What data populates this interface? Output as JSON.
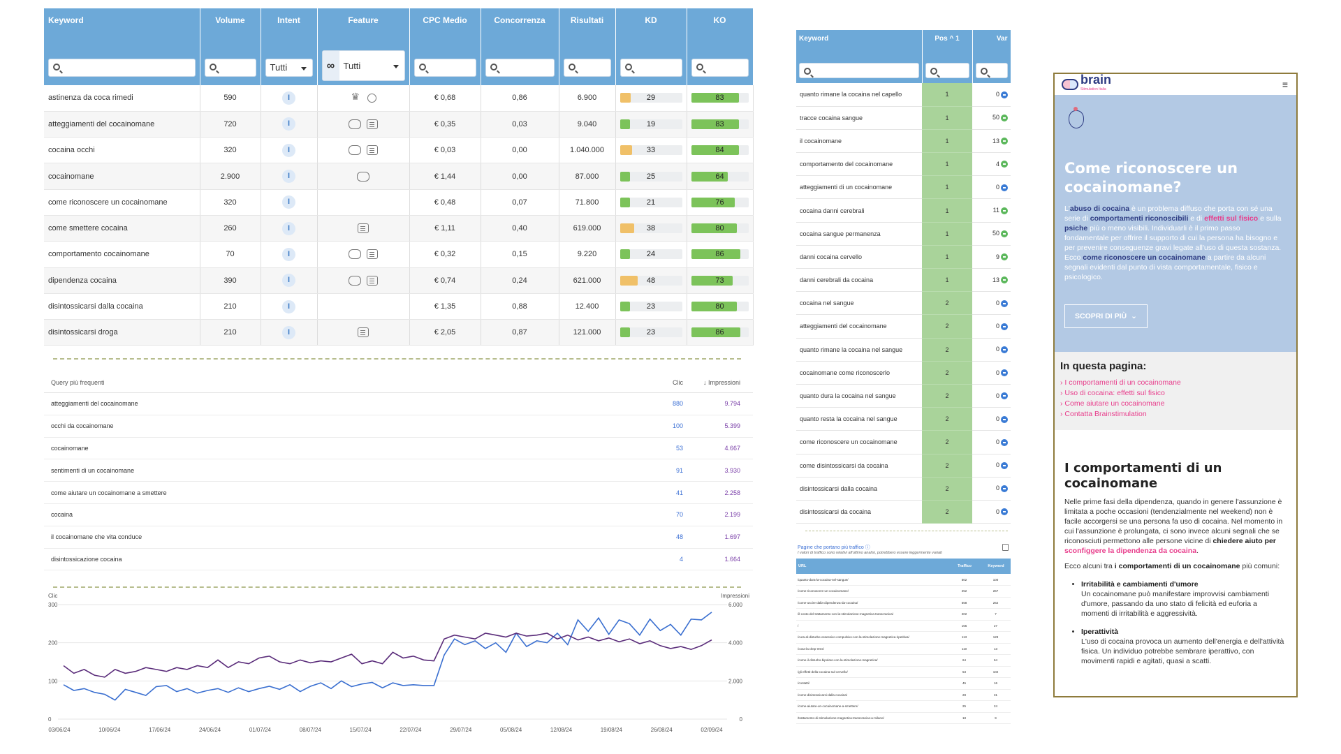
{
  "keyword_table": {
    "headers": {
      "keyword": "Keyword",
      "volume": "Volume",
      "intent": "Intent",
      "feature": "Feature",
      "cpc": "CPC Medio",
      "concorrenza": "Concorrenza",
      "risultati": "Risultati",
      "kd": "KD",
      "ko": "KO"
    },
    "filter_all": "Tutti",
    "feature_filter_icon": "infinity-icon",
    "rows": [
      {
        "keyword": "astinenza da coca rimedi",
        "volume": "590",
        "intent": "I",
        "features": [
          "crown",
          "award"
        ],
        "cpc": "€ 0,68",
        "concorrenza": "0,86",
        "risultati": "6.900",
        "kd": 29,
        "ko": 83
      },
      {
        "keyword": "atteggiamenti del cocainomane",
        "volume": "720",
        "intent": "I",
        "features": [
          "chat",
          "doc"
        ],
        "cpc": "€ 0,35",
        "concorrenza": "0,03",
        "risultati": "9.040",
        "kd": 19,
        "ko": 83
      },
      {
        "keyword": "cocaina occhi",
        "volume": "320",
        "intent": "I",
        "features": [
          "chat",
          "doc"
        ],
        "cpc": "€ 0,03",
        "concorrenza": "0,00",
        "risultati": "1.040.000",
        "kd": 33,
        "ko": 84
      },
      {
        "keyword": "cocainomane",
        "volume": "2.900",
        "intent": "I",
        "features": [
          "chat"
        ],
        "cpc": "€ 1,44",
        "concorrenza": "0,00",
        "risultati": "87.000",
        "kd": 25,
        "ko": 64
      },
      {
        "keyword": "come riconoscere un cocainomane",
        "volume": "320",
        "intent": "I",
        "features": [],
        "cpc": "€ 0,48",
        "concorrenza": "0,07",
        "risultati": "71.800",
        "kd": 21,
        "ko": 76
      },
      {
        "keyword": "come smettere cocaina",
        "volume": "260",
        "intent": "I",
        "features": [
          "doc"
        ],
        "cpc": "€ 1,11",
        "concorrenza": "0,40",
        "risultati": "619.000",
        "kd": 38,
        "ko": 80
      },
      {
        "keyword": "comportamento cocainomane",
        "volume": "70",
        "intent": "I",
        "features": [
          "chat",
          "doc"
        ],
        "cpc": "€ 0,32",
        "concorrenza": "0,15",
        "risultati": "9.220",
        "kd": 24,
        "ko": 86
      },
      {
        "keyword": "dipendenza cocaina",
        "volume": "390",
        "intent": "I",
        "features": [
          "chat",
          "doc"
        ],
        "cpc": "€ 0,74",
        "concorrenza": "0,24",
        "risultati": "621.000",
        "kd": 48,
        "ko": 73
      },
      {
        "keyword": "disintossicarsi dalla cocaina",
        "volume": "210",
        "intent": "I",
        "features": [],
        "cpc": "€ 1,35",
        "concorrenza": "0,88",
        "risultati": "12.400",
        "kd": 23,
        "ko": 80
      },
      {
        "keyword": "disintossicarsi droga",
        "volume": "210",
        "intent": "I",
        "features": [
          "doc"
        ],
        "cpc": "€ 2,05",
        "concorrenza": "0,87",
        "risultati": "121.000",
        "kd": 23,
        "ko": 86
      }
    ],
    "colors": {
      "kd_green": "#7cc35a",
      "kd_orange": "#f0c068",
      "ko_green": "#7cc35a",
      "header": "#6da9d8"
    }
  },
  "queries": {
    "title": "Query più frequenti",
    "clic_label": "Clic",
    "impr_label": "Impressioni",
    "sort_icon": "arrow-down-icon",
    "rows": [
      {
        "query": "atteggiamenti del cocainomane",
        "clic": "880",
        "impr": "9.794"
      },
      {
        "query": "occhi da cocainomane",
        "clic": "100",
        "impr": "5.399"
      },
      {
        "query": "cocainomane",
        "clic": "53",
        "impr": "4.667"
      },
      {
        "query": "sentimenti di un cocainomane",
        "clic": "91",
        "impr": "3.930"
      },
      {
        "query": "come aiutare un cocainomane a smettere",
        "clic": "41",
        "impr": "2.258"
      },
      {
        "query": "cocaina",
        "clic": "70",
        "impr": "2.199"
      },
      {
        "query": "il cocainomane che vita conduce",
        "clic": "48",
        "impr": "1.697"
      },
      {
        "query": "disintossicazione cocaina",
        "clic": "4",
        "impr": "1.664"
      }
    ]
  },
  "chart_data": {
    "type": "line",
    "left_axis_label": "Clic",
    "right_axis_label": "Impressioni",
    "left_ticks": [
      "300",
      "200",
      "100",
      "0"
    ],
    "right_ticks": [
      "6.000",
      "4.000",
      "2.000",
      "0"
    ],
    "ylim_left": [
      0,
      300
    ],
    "ylim_right": [
      0,
      6000
    ],
    "x_ticks": [
      "03/06/24",
      "10/06/24",
      "17/06/24",
      "24/06/24",
      "01/07/24",
      "08/07/24",
      "15/07/24",
      "22/07/24",
      "29/07/24",
      "05/08/24",
      "12/08/24",
      "19/08/24",
      "26/08/24",
      "02/09/24"
    ],
    "series": [
      {
        "name": "Clic",
        "axis": "left",
        "color": "#3a6fd0",
        "values": [
          90,
          75,
          80,
          70,
          65,
          50,
          78,
          70,
          62,
          85,
          88,
          72,
          80,
          68,
          75,
          80,
          70,
          82,
          72,
          80,
          86,
          78,
          90,
          72,
          86,
          95,
          80,
          100,
          85,
          92,
          96,
          82,
          95,
          88,
          90,
          88,
          88,
          168,
          210,
          195,
          205,
          185,
          200,
          175,
          225,
          190,
          205,
          200,
          225,
          195,
          260,
          230,
          265,
          222,
          260,
          250,
          220,
          262,
          232,
          248,
          220,
          262,
          260,
          280
        ]
      },
      {
        "name": "Impressioni",
        "axis": "right",
        "color": "#5a2c7a",
        "values": [
          2800,
          2400,
          2600,
          2300,
          2200,
          2600,
          2400,
          2500,
          2700,
          2600,
          2500,
          2700,
          2600,
          2800,
          2700,
          3100,
          2700,
          3000,
          2900,
          3200,
          3300,
          3000,
          2900,
          3100,
          2950,
          3050,
          3000,
          3200,
          3400,
          2900,
          3050,
          2900,
          3500,
          3200,
          3300,
          3100,
          3050,
          4200,
          4400,
          4300,
          4200,
          4500,
          4400,
          4300,
          4500,
          4350,
          4400,
          4500,
          4200,
          4400,
          4150,
          4300,
          4100,
          4250,
          4050,
          4200,
          3950,
          4100,
          3850,
          3700,
          3800,
          3650,
          3850,
          4150
        ]
      }
    ]
  },
  "positions": {
    "headers": {
      "keyword": "Keyword",
      "pos": "Pos",
      "var": "Var"
    },
    "sort_icon": "chevron-up-icon",
    "sort_index": "1",
    "rows": [
      {
        "keyword": "quanto rimane la cocaina nel capello",
        "pos": "1",
        "var": "0",
        "dir": "eq"
      },
      {
        "keyword": "tracce cocaina sangue",
        "pos": "1",
        "var": "50",
        "dir": "up"
      },
      {
        "keyword": "il cocainomane",
        "pos": "1",
        "var": "13",
        "dir": "up"
      },
      {
        "keyword": "comportamento del cocainomane",
        "pos": "1",
        "var": "4",
        "dir": "up"
      },
      {
        "keyword": "atteggiamenti di un cocainomane",
        "pos": "1",
        "var": "0",
        "dir": "eq"
      },
      {
        "keyword": "cocaina danni cerebrali",
        "pos": "1",
        "var": "11",
        "dir": "up"
      },
      {
        "keyword": "cocaina sangue permanenza",
        "pos": "1",
        "var": "50",
        "dir": "up"
      },
      {
        "keyword": "danni cocaina cervello",
        "pos": "1",
        "var": "9",
        "dir": "up"
      },
      {
        "keyword": "danni cerebrali da cocaina",
        "pos": "1",
        "var": "13",
        "dir": "up"
      },
      {
        "keyword": "cocaina nel sangue",
        "pos": "2",
        "var": "0",
        "dir": "eq"
      },
      {
        "keyword": "atteggiamenti del cocainomane",
        "pos": "2",
        "var": "0",
        "dir": "eq"
      },
      {
        "keyword": "quanto rimane la cocaina nel sangue",
        "pos": "2",
        "var": "0",
        "dir": "eq"
      },
      {
        "keyword": "cocainomane come riconoscerlo",
        "pos": "2",
        "var": "0",
        "dir": "eq"
      },
      {
        "keyword": "quanto dura la cocaina nel sangue",
        "pos": "2",
        "var": "0",
        "dir": "eq"
      },
      {
        "keyword": "quanto resta la cocaina nel sangue",
        "pos": "2",
        "var": "0",
        "dir": "eq"
      },
      {
        "keyword": "come riconoscere un cocainomane",
        "pos": "2",
        "var": "0",
        "dir": "eq"
      },
      {
        "keyword": "come disintossicarsi da cocaina",
        "pos": "2",
        "var": "0",
        "dir": "eq"
      },
      {
        "keyword": "disintossicarsi dalla cocaina",
        "pos": "2",
        "var": "0",
        "dir": "eq"
      },
      {
        "keyword": "disintossicarsi da cocaina",
        "pos": "2",
        "var": "0",
        "dir": "eq"
      }
    ]
  },
  "traffic": {
    "title": "Pagine che portano più traffico",
    "note": "I valori di traffico sono relativi all'ultimo analisi, potrebbero essere leggermente variati",
    "headers": {
      "url": "URL",
      "traffic": "Traffico",
      "keyword": "Keyword"
    },
    "rows": [
      {
        "url": "/quanto-dura-la-cocaina-nel-sangue/",
        "traffic": "502",
        "keyword": "100"
      },
      {
        "url": "/come-riconoscere-un-cocainomane/",
        "traffic": "252",
        "keyword": "267"
      },
      {
        "url": "/come-uscire-dalla-dipendenza-da-cocaina/",
        "traffic": "558",
        "keyword": "262"
      },
      {
        "url": "/il-costo-del-trattamento-con-la-stimolazione-magnetica-transcranica/",
        "traffic": "202",
        "keyword": "7"
      },
      {
        "url": "/",
        "traffic": "156",
        "keyword": "27"
      },
      {
        "url": "/cura-al-disturbo-ossessivo-compulsivo-con-la-stimolazione-magnetica-ripetitiva/",
        "traffic": "113",
        "keyword": "129"
      },
      {
        "url": "/cosa-la-drep-rtms/",
        "traffic": "110",
        "keyword": "13"
      },
      {
        "url": "/come-il-disturbo-bipolare-con-la-stimolazione-magnetica/",
        "traffic": "64",
        "keyword": "64"
      },
      {
        "url": "/gli-effetti-della-cocaina-sul-cervello/",
        "traffic": "53",
        "keyword": "102"
      },
      {
        "url": "/contatti/",
        "traffic": "45",
        "keyword": "16"
      },
      {
        "url": "/come-disintossicarsi-dalla-cocaina/",
        "traffic": "28",
        "keyword": "31"
      },
      {
        "url": "/come-aiutare-un-cocainomane-a-smettere/",
        "traffic": "25",
        "keyword": "24"
      },
      {
        "url": "/trattamento-di-stimolazione-magnetica-transcranica-a-milano/",
        "traffic": "18",
        "keyword": "9"
      }
    ]
  },
  "mobile": {
    "logo_word": "brain",
    "logo_sub": "Stimulation Italia",
    "menu_icon": "hamburger-icon",
    "hero_title": "Come riconoscere un cocainomane?",
    "hero_p": {
      "t1": "L'",
      "b1": "abuso di cocaina",
      "t2": " è un problema diffuso che porta con sé una serie di ",
      "b2": "comportamenti riconoscibili",
      "t3": " e di ",
      "b3": "effetti sul fisico",
      "t4": " e sulla ",
      "b4": "psiche",
      "t5": " più o meno visibili. Individuarli è il primo passo fondamentale per offrire il supporto di cui la persona ha bisogno e per prevenire conseguenze gravi legate all'uso di questa sostanza. Ecco ",
      "b5": "come riconoscere un cocainomane",
      "t6": " a partire da alcuni segnali evidenti dal punto di vista comportamentale, fisico e psicologico."
    },
    "cta": "SCOPRI DI PIÙ",
    "toc_title": "In questa pagina:",
    "toc": [
      "I comportamenti di un cocainomane",
      "Uso di cocaina: effetti sul fisico",
      "Come aiutare un cocainomane",
      "Contatta Brainstimulation"
    ],
    "section_title": "I comportamenti di un cocainomane",
    "section_p1": {
      "t1": "Nelle prime fasi della dipendenza, quando in genere l'assunzione è limitata a poche occasioni (tendenzialmente nel weekend) non è facile accorgersi se una persona fa uso di cocaina. Nel momento in cui l'assunzione è prolungata, ci sono invece alcuni segnali che se riconosciuti permettono alle persone vicine di ",
      "b1": "chiedere aiuto per",
      "b2": "sconfiggere la dipendenza da cocaina",
      "t2": "."
    },
    "section_p2": {
      "t1": "Ecco alcuni tra ",
      "b1": "i comportamenti di un cocainomane",
      "t2": " più comuni:"
    },
    "bullets": [
      {
        "title": "Irritabilità e cambiamenti d'umore",
        "text": "Un cocainomane può manifestare improvvisi cambiamenti d'umore, passando da uno stato di felicità ed euforia a momenti di irritabilità e aggressività."
      },
      {
        "title": "Iperattività",
        "text": "L'uso di cocaina provoca un aumento dell'energia e dell'attività fisica. Un individuo potrebbe sembrare iperattivo, con movimenti rapidi e agitati, quasi a scatti."
      }
    ]
  }
}
